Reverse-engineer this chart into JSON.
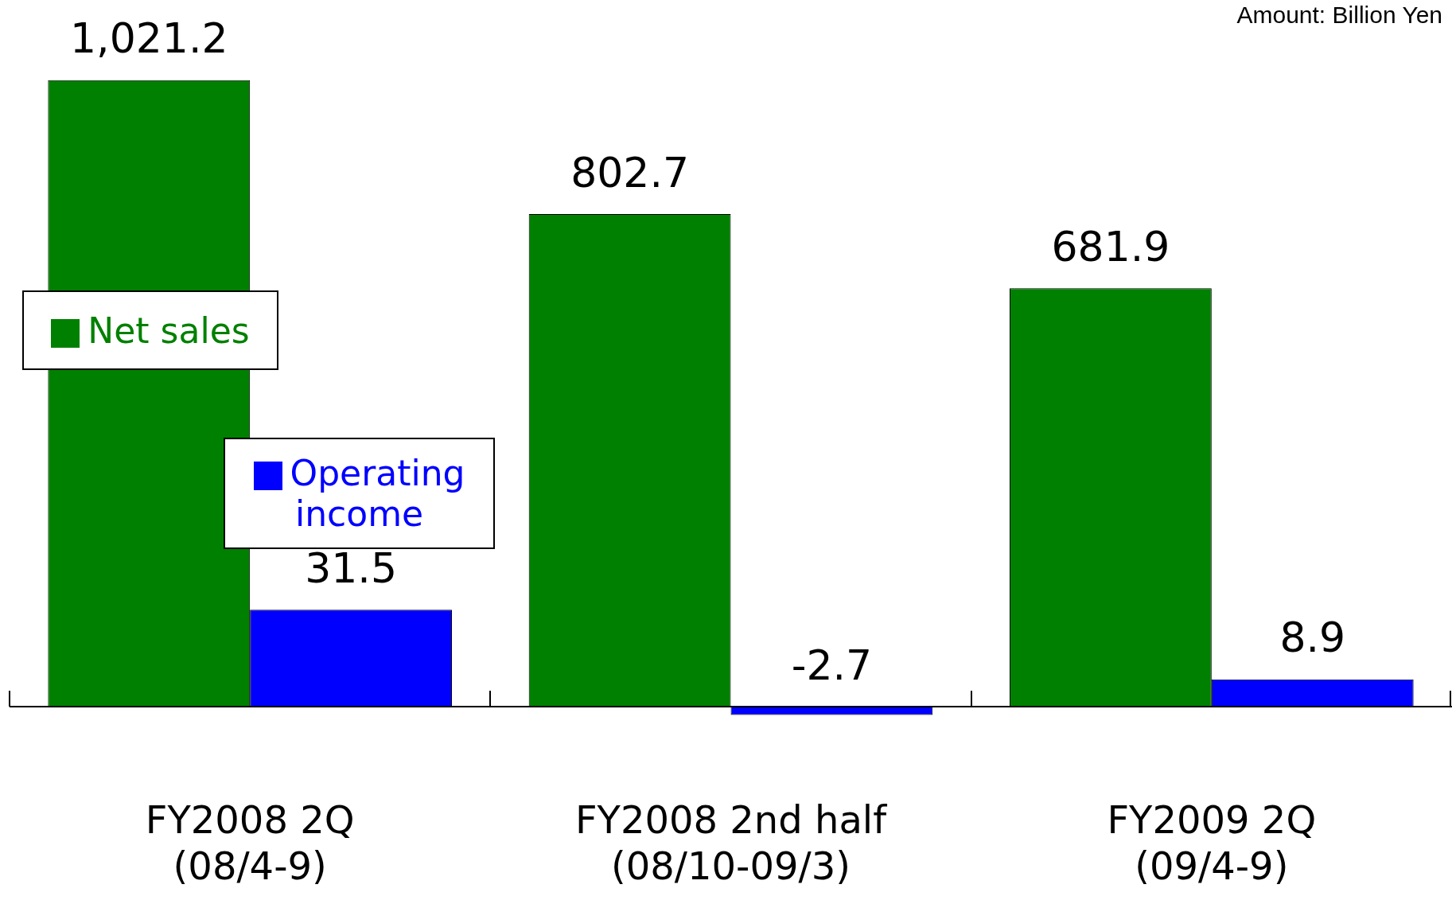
{
  "chart_data": {
    "type": "bar",
    "categories": [
      "FY2008 2Q\n(08/4-9)",
      "FY2008 2nd half\n(08/10-09/3)",
      "FY2009 2Q\n(09/4-9)"
    ],
    "series": [
      {
        "name": "Net sales",
        "color": "#008000",
        "values": [
          1021.2,
          802.7,
          681.9
        ],
        "value_labels": [
          "1,021.2",
          "802.7",
          "681.9"
        ]
      },
      {
        "name": "Operating income",
        "color": "#0000ff",
        "values": [
          31.5,
          -2.7,
          8.9
        ],
        "axis": "y2",
        "value_labels": [
          "31.5",
          "-2.7",
          "8.9"
        ]
      }
    ],
    "tick_labels": "x",
    "legend": "left",
    "grid": false,
    "annotations": [
      "Amount: Billion Yen"
    ]
  }
}
